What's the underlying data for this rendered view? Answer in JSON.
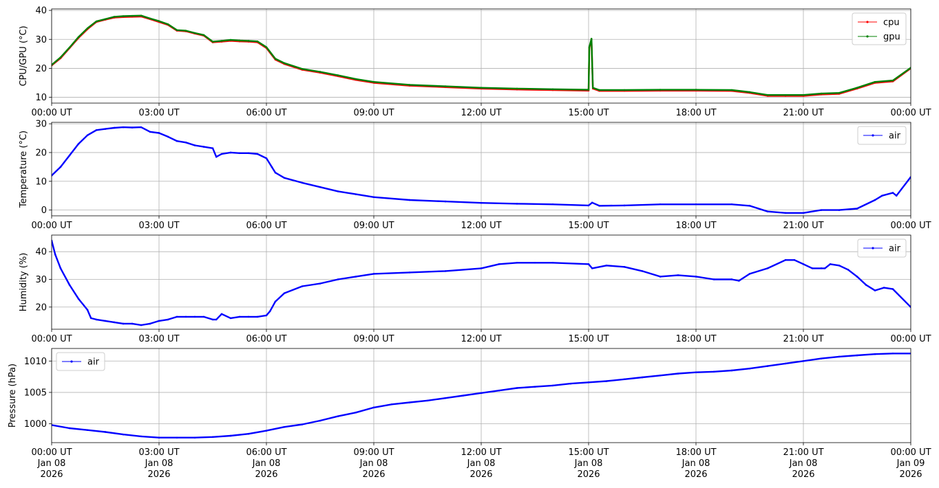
{
  "chart_data": [
    {
      "type": "line",
      "ylabel": "CPU/GPU (°C)",
      "ylim": [
        8,
        40.5
      ],
      "yticks": [
        10,
        20,
        30,
        40
      ],
      "xlim": [
        "00:00 UT",
        "00:00 UT"
      ],
      "xticks": [
        "00:00 UT",
        "03:00 UT",
        "06:00 UT",
        "09:00 UT",
        "12:00 UT",
        "15:00 UT",
        "18:00 UT",
        "21:00 UT",
        "00:00 UT"
      ],
      "grid": true,
      "legend_placement": "top-right",
      "series": [
        {
          "name": "cpu",
          "color": "#ff0000",
          "x": [
            0,
            0.25,
            0.5,
            0.75,
            1.0,
            1.25,
            1.5,
            1.75,
            2.0,
            2.25,
            2.5,
            2.75,
            3.0,
            3.25,
            3.5,
            3.75,
            4.0,
            4.25,
            4.5,
            4.75,
            5.0,
            5.25,
            5.5,
            5.75,
            6.0,
            6.25,
            6.5,
            7.0,
            7.5,
            8.0,
            8.5,
            9.0,
            10.0,
            11.0,
            12.0,
            13.0,
            14.0,
            15.0,
            15.02,
            15.08,
            15.12,
            15.3,
            16.0,
            17.0,
            18.0,
            19.0,
            19.5,
            20.0,
            20.5,
            21.0,
            21.5,
            22.0,
            22.5,
            23.0,
            23.5,
            24.0
          ],
          "values": [
            21,
            23.5,
            27,
            30.5,
            33.5,
            36,
            36.8,
            37.5,
            37.7,
            37.8,
            37.9,
            37,
            36,
            35,
            33,
            32.8,
            32,
            31.3,
            29,
            29.2,
            29.5,
            29.3,
            29.2,
            29,
            27,
            23,
            21.5,
            19.5,
            18.5,
            17.3,
            16,
            15,
            14,
            13.5,
            13,
            12.7,
            12.5,
            12.3,
            27,
            30,
            13,
            12.2,
            12.2,
            12.3,
            12.3,
            12.2,
            11.5,
            10.5,
            10.5,
            10.5,
            11,
            11.2,
            13,
            15,
            15.5,
            20
          ]
        },
        {
          "name": "gpu",
          "color": "#008000",
          "x": [
            0,
            0.25,
            0.5,
            0.75,
            1.0,
            1.25,
            1.5,
            1.75,
            2.0,
            2.25,
            2.5,
            2.75,
            3.0,
            3.25,
            3.5,
            3.75,
            4.0,
            4.25,
            4.5,
            4.75,
            5.0,
            5.25,
            5.5,
            5.75,
            6.0,
            6.25,
            6.5,
            7.0,
            7.5,
            8.0,
            8.5,
            9.0,
            10.0,
            11.0,
            12.0,
            13.0,
            14.0,
            15.0,
            15.02,
            15.08,
            15.12,
            15.3,
            16.0,
            17.0,
            18.0,
            19.0,
            19.5,
            20.0,
            20.5,
            21.0,
            21.5,
            22.0,
            22.5,
            23.0,
            23.5,
            24.0
          ],
          "values": [
            21.2,
            23.8,
            27.2,
            30.8,
            33.8,
            36.2,
            37,
            37.8,
            38,
            38.1,
            38.2,
            37.2,
            36.3,
            35.2,
            33.2,
            33,
            32.2,
            31.5,
            29.2,
            29.5,
            29.8,
            29.6,
            29.5,
            29.3,
            27.3,
            23.3,
            21.8,
            19.8,
            18.8,
            17.6,
            16.3,
            15.3,
            14.3,
            13.8,
            13.3,
            13,
            12.8,
            12.6,
            27.3,
            30.2,
            13.3,
            12.5,
            12.5,
            12.6,
            12.6,
            12.5,
            11.8,
            10.8,
            10.8,
            10.8,
            11.3,
            11.5,
            13.3,
            15.3,
            15.8,
            20.2
          ]
        }
      ]
    },
    {
      "type": "line",
      "ylabel": "Temperature (°C)",
      "ylim": [
        -2,
        30.5
      ],
      "yticks": [
        0,
        10,
        20,
        30
      ],
      "xticks": [
        "00:00 UT",
        "03:00 UT",
        "06:00 UT",
        "09:00 UT",
        "12:00 UT",
        "15:00 UT",
        "18:00 UT",
        "21:00 UT",
        "00:00 UT"
      ],
      "grid": true,
      "legend_placement": "top-right",
      "series": [
        {
          "name": "air",
          "color": "#0000ff",
          "x": [
            0,
            0.25,
            0.5,
            0.75,
            1.0,
            1.25,
            1.5,
            1.75,
            2.0,
            2.25,
            2.5,
            2.75,
            3.0,
            3.25,
            3.5,
            3.75,
            4.0,
            4.25,
            4.5,
            4.6,
            4.75,
            5.0,
            5.25,
            5.5,
            5.75,
            6.0,
            6.15,
            6.25,
            6.5,
            7.0,
            7.5,
            8.0,
            8.5,
            9.0,
            10.0,
            11.0,
            12.0,
            13.0,
            14.0,
            15.0,
            15.1,
            15.3,
            16.0,
            17.0,
            18.0,
            19.0,
            19.5,
            20.0,
            20.5,
            21.0,
            21.5,
            22.0,
            22.5,
            23.0,
            23.2,
            23.5,
            23.6,
            24.0
          ],
          "values": [
            12,
            15,
            19,
            23,
            26,
            27.8,
            28.2,
            28.6,
            28.8,
            28.7,
            28.8,
            27.2,
            26.8,
            25.5,
            24,
            23.5,
            22.5,
            22,
            21.5,
            18.5,
            19.5,
            20,
            19.8,
            19.8,
            19.5,
            18,
            15,
            13,
            11.2,
            9.5,
            8,
            6.5,
            5.5,
            4.5,
            3.5,
            3,
            2.5,
            2.2,
            2,
            1.6,
            2.6,
            1.5,
            1.6,
            2,
            2,
            2,
            1.5,
            -0.5,
            -1,
            -1,
            0,
            0,
            0.5,
            3.5,
            5,
            6,
            5,
            11.5
          ]
        }
      ]
    },
    {
      "type": "line",
      "ylabel": "Humidity (%)",
      "ylim": [
        12,
        46
      ],
      "yticks": [
        20,
        30,
        40
      ],
      "xticks": [
        "00:00 UT",
        "03:00 UT",
        "06:00 UT",
        "09:00 UT",
        "12:00 UT",
        "15:00 UT",
        "18:00 UT",
        "21:00 UT",
        "00:00 UT"
      ],
      "grid": true,
      "legend_placement": "top-right",
      "series": [
        {
          "name": "air",
          "color": "#0000ff",
          "x": [
            0,
            0.1,
            0.25,
            0.5,
            0.75,
            1.0,
            1.1,
            1.25,
            1.5,
            1.75,
            2.0,
            2.25,
            2.5,
            2.75,
            3.0,
            3.25,
            3.5,
            3.75,
            4.0,
            4.25,
            4.5,
            4.6,
            4.75,
            5.0,
            5.25,
            5.5,
            5.75,
            6.0,
            6.1,
            6.25,
            6.5,
            7.0,
            7.5,
            8.0,
            8.5,
            9.0,
            10.0,
            11.0,
            12.0,
            12.5,
            13.0,
            13.5,
            14.0,
            15.0,
            15.1,
            15.5,
            16.0,
            16.5,
            17.0,
            17.5,
            18.0,
            18.5,
            19.0,
            19.2,
            19.5,
            20.0,
            20.5,
            20.75,
            21.0,
            21.25,
            21.5,
            21.6,
            21.75,
            22.0,
            22.25,
            22.5,
            22.75,
            23.0,
            23.25,
            23.5,
            24.0
          ],
          "values": [
            44,
            39,
            34,
            28,
            23,
            19,
            16,
            15.5,
            15,
            14.5,
            14,
            14,
            13.5,
            14,
            15,
            15.5,
            16.5,
            16.5,
            16.5,
            16.5,
            15.5,
            15.5,
            17.5,
            16,
            16.5,
            16.5,
            16.5,
            17,
            18.5,
            22,
            25,
            27.5,
            28.5,
            30,
            31,
            32,
            32.5,
            33,
            34,
            35.5,
            36,
            36,
            36,
            35.5,
            34,
            35,
            34.5,
            33,
            31,
            31.5,
            31,
            30,
            30,
            29.5,
            32,
            34,
            37,
            37,
            35.5,
            34,
            34,
            34,
            35.5,
            35,
            33.5,
            31,
            28,
            26,
            27,
            26.5,
            20
          ]
        }
      ]
    },
    {
      "type": "line",
      "ylabel": "Pressure (hPa)",
      "ylim": [
        997,
        1012
      ],
      "yticks": [
        1000,
        1005,
        1010
      ],
      "xticks": [
        "00:00 UT",
        "03:00 UT",
        "06:00 UT",
        "09:00 UT",
        "12:00 UT",
        "15:00 UT",
        "18:00 UT",
        "21:00 UT",
        "00:00 UT"
      ],
      "xtick_dates": [
        "Jan 08",
        "Jan 08",
        "Jan 08",
        "Jan 08",
        "Jan 08",
        "Jan 08",
        "Jan 08",
        "Jan 08",
        "Jan 09"
      ],
      "xtick_years": [
        "2026",
        "2026",
        "2026",
        "2026",
        "2026",
        "2026",
        "2026",
        "2026",
        "2026"
      ],
      "grid": true,
      "legend_placement": "top-left",
      "series": [
        {
          "name": "air",
          "color": "#0000ff",
          "x": [
            0,
            0.5,
            1.0,
            1.5,
            2.0,
            2.5,
            3.0,
            3.5,
            4.0,
            4.5,
            5.0,
            5.5,
            6.0,
            6.5,
            7.0,
            7.5,
            8.0,
            8.5,
            9.0,
            9.5,
            10.0,
            10.5,
            11.0,
            11.5,
            12.0,
            12.5,
            13.0,
            13.5,
            14.0,
            14.5,
            15.0,
            15.5,
            16.0,
            16.5,
            17.0,
            17.5,
            18.0,
            18.5,
            19.0,
            19.5,
            20.0,
            20.5,
            21.0,
            21.5,
            22.0,
            22.5,
            23.0,
            23.5,
            24.0
          ],
          "values": [
            999.8,
            999.3,
            999.0,
            998.7,
            998.3,
            998.0,
            997.8,
            997.8,
            997.8,
            997.9,
            998.1,
            998.4,
            998.9,
            999.5,
            999.9,
            1000.5,
            1001.2,
            1001.8,
            1002.6,
            1003.1,
            1003.4,
            1003.7,
            1004.1,
            1004.5,
            1004.9,
            1005.3,
            1005.7,
            1005.9,
            1006.1,
            1006.4,
            1006.6,
            1006.8,
            1007.1,
            1007.4,
            1007.7,
            1008.0,
            1008.2,
            1008.3,
            1008.5,
            1008.8,
            1009.2,
            1009.6,
            1010.0,
            1010.4,
            1010.7,
            1010.9,
            1011.1,
            1011.2,
            1011.2
          ]
        }
      ]
    }
  ]
}
